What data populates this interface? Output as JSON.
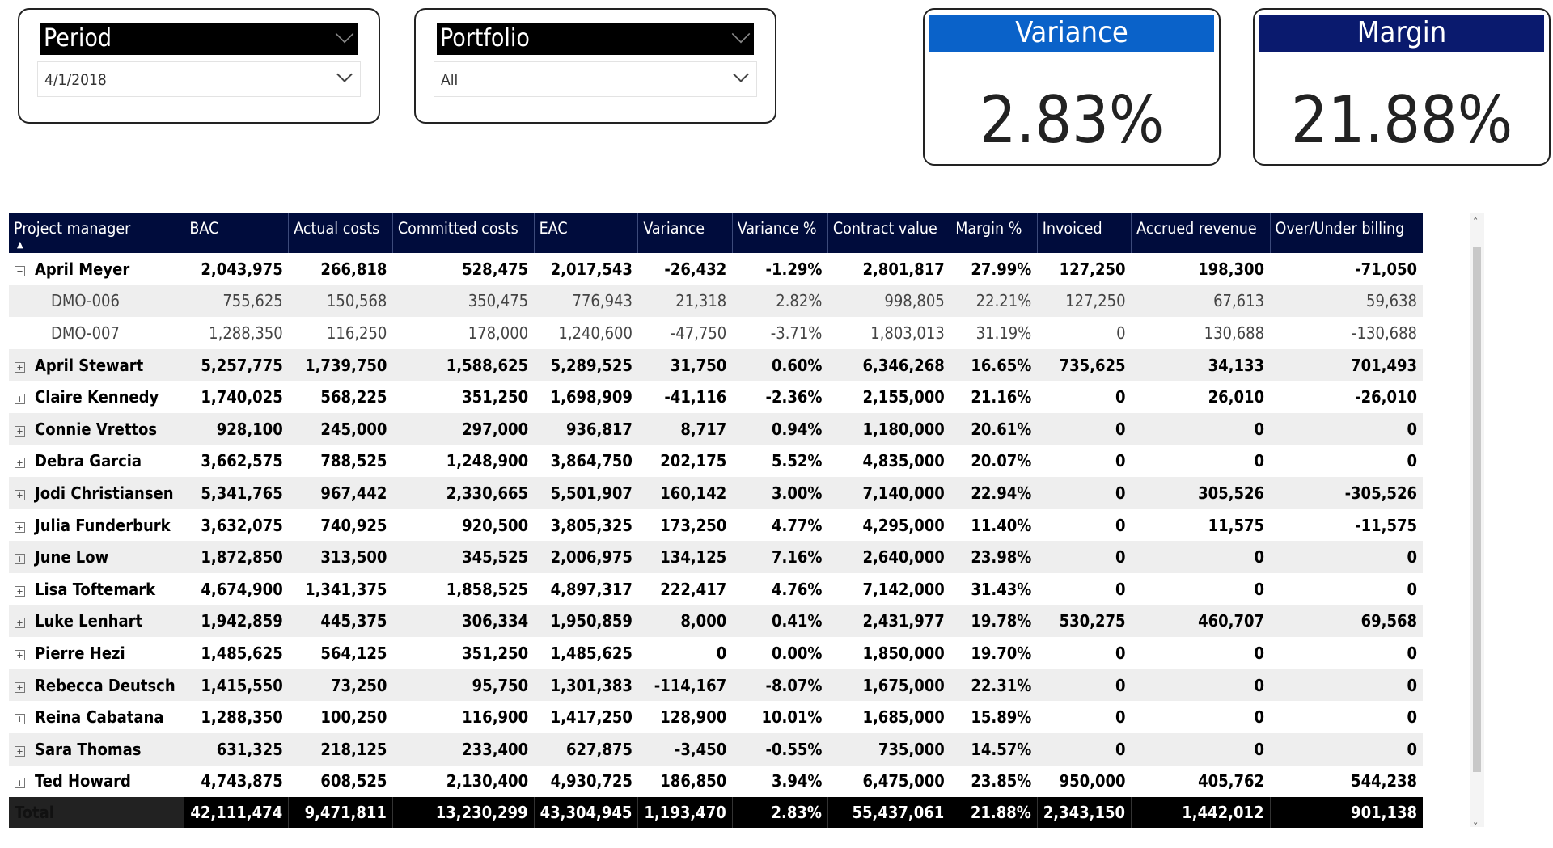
{
  "slicers": [
    {
      "title": "Period",
      "value": "4/1/2018"
    },
    {
      "title": "Portfolio",
      "value": "All"
    }
  ],
  "cards": [
    {
      "title": "Variance",
      "value": "2.83%",
      "color": "#0a62c9"
    },
    {
      "title": "Margin",
      "value": "21.88%",
      "color": "#0a1a6e"
    }
  ],
  "table": {
    "columns": [
      "Project manager",
      "BAC",
      "Actual costs",
      "Committed costs",
      "EAC",
      "Variance",
      "Variance %",
      "Contract value",
      "Margin %",
      "Invoiced",
      "Accrued revenue",
      "Over/Under billing"
    ],
    "rows": [
      {
        "type": "pm",
        "expanded": true,
        "cells": [
          "April Meyer",
          "2,043,975",
          "266,818",
          "528,475",
          "2,017,543",
          "-26,432",
          "-1.29%",
          "2,801,817",
          "27.99%",
          "127,250",
          "198,300",
          "-71,050"
        ]
      },
      {
        "type": "sub",
        "cells": [
          "DMO-006",
          "755,625",
          "150,568",
          "350,475",
          "776,943",
          "21,318",
          "2.82%",
          "998,805",
          "22.21%",
          "127,250",
          "67,613",
          "59,638"
        ]
      },
      {
        "type": "sub",
        "cells": [
          "DMO-007",
          "1,288,350",
          "116,250",
          "178,000",
          "1,240,600",
          "-47,750",
          "-3.71%",
          "1,803,013",
          "31.19%",
          "0",
          "130,688",
          "-130,688"
        ]
      },
      {
        "type": "pm",
        "cells": [
          "April Stewart",
          "5,257,775",
          "1,739,750",
          "1,588,625",
          "5,289,525",
          "31,750",
          "0.60%",
          "6,346,268",
          "16.65%",
          "735,625",
          "34,133",
          "701,493"
        ]
      },
      {
        "type": "pm",
        "cells": [
          "Claire Kennedy",
          "1,740,025",
          "568,225",
          "351,250",
          "1,698,909",
          "-41,116",
          "-2.36%",
          "2,155,000",
          "21.16%",
          "0",
          "26,010",
          "-26,010"
        ]
      },
      {
        "type": "pm",
        "cells": [
          "Connie Vrettos",
          "928,100",
          "245,000",
          "297,000",
          "936,817",
          "8,717",
          "0.94%",
          "1,180,000",
          "20.61%",
          "0",
          "0",
          "0"
        ]
      },
      {
        "type": "pm",
        "cells": [
          "Debra Garcia",
          "3,662,575",
          "788,525",
          "1,248,900",
          "3,864,750",
          "202,175",
          "5.52%",
          "4,835,000",
          "20.07%",
          "0",
          "0",
          "0"
        ]
      },
      {
        "type": "pm",
        "cells": [
          "Jodi Christiansen",
          "5,341,765",
          "967,442",
          "2,330,665",
          "5,501,907",
          "160,142",
          "3.00%",
          "7,140,000",
          "22.94%",
          "0",
          "305,526",
          "-305,526"
        ]
      },
      {
        "type": "pm",
        "cells": [
          "Julia Funderburk",
          "3,632,075",
          "740,925",
          "920,500",
          "3,805,325",
          "173,250",
          "4.77%",
          "4,295,000",
          "11.40%",
          "0",
          "11,575",
          "-11,575"
        ]
      },
      {
        "type": "pm",
        "cells": [
          "June Low",
          "1,872,850",
          "313,500",
          "345,525",
          "2,006,975",
          "134,125",
          "7.16%",
          "2,640,000",
          "23.98%",
          "0",
          "0",
          "0"
        ]
      },
      {
        "type": "pm",
        "cells": [
          "Lisa Toftemark",
          "4,674,900",
          "1,341,375",
          "1,858,525",
          "4,897,317",
          "222,417",
          "4.76%",
          "7,142,000",
          "31.43%",
          "0",
          "0",
          "0"
        ]
      },
      {
        "type": "pm",
        "cells": [
          "Luke Lenhart",
          "1,942,859",
          "445,375",
          "306,334",
          "1,950,859",
          "8,000",
          "0.41%",
          "2,431,977",
          "19.78%",
          "530,275",
          "460,707",
          "69,568"
        ]
      },
      {
        "type": "pm",
        "cells": [
          "Pierre Hezi",
          "1,485,625",
          "564,125",
          "351,250",
          "1,485,625",
          "0",
          "0.00%",
          "1,850,000",
          "19.70%",
          "0",
          "0",
          "0"
        ]
      },
      {
        "type": "pm",
        "cells": [
          "Rebecca Deutsch",
          "1,415,550",
          "73,250",
          "95,750",
          "1,301,383",
          "-114,167",
          "-8.07%",
          "1,675,000",
          "22.31%",
          "0",
          "0",
          "0"
        ]
      },
      {
        "type": "pm",
        "cells": [
          "Reina Cabatana",
          "1,288,350",
          "100,250",
          "116,900",
          "1,417,250",
          "128,900",
          "10.01%",
          "1,685,000",
          "15.89%",
          "0",
          "0",
          "0"
        ]
      },
      {
        "type": "pm",
        "cells": [
          "Sara Thomas",
          "631,325",
          "218,125",
          "233,400",
          "627,875",
          "-3,450",
          "-0.55%",
          "735,000",
          "14.57%",
          "0",
          "0",
          "0"
        ]
      },
      {
        "type": "pm",
        "cells": [
          "Ted Howard",
          "4,743,875",
          "608,525",
          "2,130,400",
          "4,930,725",
          "186,850",
          "3.94%",
          "6,475,000",
          "23.85%",
          "950,000",
          "405,762",
          "544,238"
        ]
      }
    ],
    "total": [
      "Total",
      "42,111,474",
      "9,471,811",
      "13,230,299",
      "43,304,945",
      "1,193,470",
      "2.83%",
      "55,437,061",
      "21.88%",
      "2,343,150",
      "1,442,012",
      "901,138"
    ]
  }
}
